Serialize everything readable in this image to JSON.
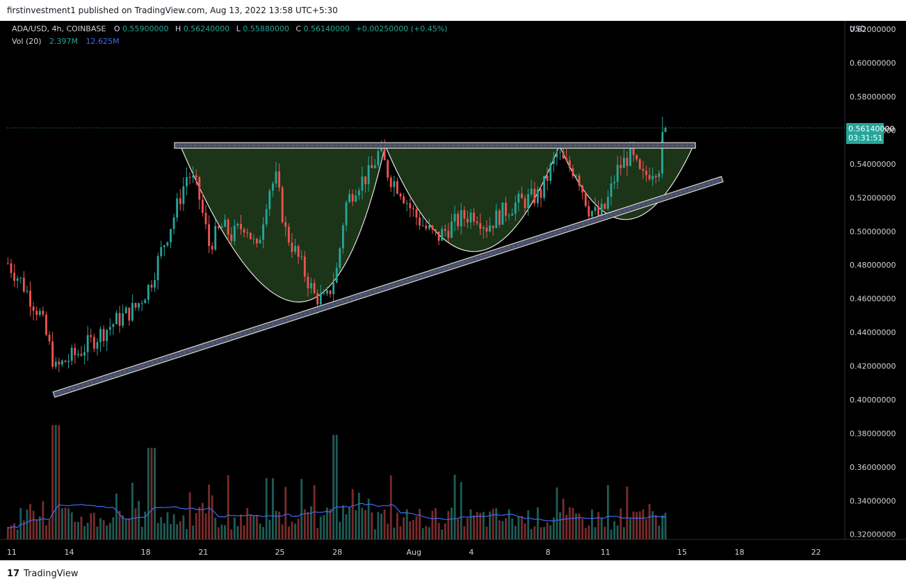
{
  "header": {
    "published": "firstinvestment1 published on TradingView.com, Aug 13, 2022 13:58 UTC+5:30"
  },
  "footer": {
    "brand": "TradingView",
    "logo_text": "17"
  },
  "legend": {
    "symbol": "ADA/USD, 4h, COINBASE",
    "o_label": "O",
    "o_value": "0.55900000",
    "h_label": "H",
    "h_value": "0.56240000",
    "l_label": "L",
    "l_value": "0.55880000",
    "c_label": "C",
    "c_value": "0.56140000",
    "change": "+0.00250000 (+0.45%)",
    "vol_label": "Vol (20)",
    "vol_value": "2.397M",
    "vol_ma": "12.625M"
  },
  "price_badge": {
    "price": "0.56140000",
    "countdown": "03:31:51"
  },
  "colors": {
    "up": "#26a69a",
    "down": "#ef5350",
    "vol_up": "#1f5c56",
    "vol_down": "#7a2b2b",
    "vol_ma": "#3d6cf5",
    "cup_fill": "#1f3a1a",
    "badge": "#26a69a",
    "background": "#000000"
  },
  "chart_data": {
    "type": "candlestick",
    "currency": "USD",
    "ylim": [
      0.317,
      0.625
    ],
    "y_ticks": [
      "0.62000000",
      "0.60000000",
      "0.58000000",
      "0.56000000",
      "0.54000000",
      "0.52000000",
      "0.50000000",
      "0.48000000",
      "0.46000000",
      "0.44000000",
      "0.42000000",
      "0.40000000",
      "0.38000000",
      "0.36000000",
      "0.34000000",
      "0.32000000"
    ],
    "x_ticks": [
      {
        "label": "11",
        "day": 11
      },
      {
        "label": "14",
        "day": 14
      },
      {
        "label": "18",
        "day": 18
      },
      {
        "label": "21",
        "day": 21
      },
      {
        "label": "25",
        "day": 25
      },
      {
        "label": "28",
        "day": 28
      },
      {
        "label": "Aug",
        "day": 32
      },
      {
        "label": "4",
        "day": 35
      },
      {
        "label": "8",
        "day": 39
      },
      {
        "label": "11",
        "day": 42
      },
      {
        "label": "15",
        "day": 46
      },
      {
        "label": "18",
        "day": 49
      },
      {
        "label": "22",
        "day": 53
      }
    ],
    "x_unit": "days from Jul 1 2022 (Aug 1 = 32)",
    "xlim": [
      10.75,
      54.5
    ],
    "price_path": [
      [
        10.8,
        0.481
      ],
      [
        11.5,
        0.47
      ],
      [
        12.5,
        0.45
      ],
      [
        13.3,
        0.418
      ],
      [
        13.8,
        0.423
      ],
      [
        14.5,
        0.428
      ],
      [
        15.5,
        0.438
      ],
      [
        16.5,
        0.447
      ],
      [
        17.5,
        0.455
      ],
      [
        18.2,
        0.468
      ],
      [
        18.8,
        0.488
      ],
      [
        19.5,
        0.51
      ],
      [
        20.2,
        0.535
      ],
      [
        20.7,
        0.525
      ],
      [
        21.3,
        0.492
      ],
      [
        22.0,
        0.503
      ],
      [
        22.5,
        0.497
      ],
      [
        23.2,
        0.505
      ],
      [
        23.8,
        0.488
      ],
      [
        24.4,
        0.525
      ],
      [
        24.8,
        0.531
      ],
      [
        25.3,
        0.5
      ],
      [
        26.0,
        0.483
      ],
      [
        26.8,
        0.462
      ],
      [
        27.4,
        0.458
      ],
      [
        28.0,
        0.478
      ],
      [
        28.4,
        0.515
      ],
      [
        29.0,
        0.528
      ],
      [
        29.7,
        0.534
      ],
      [
        30.2,
        0.548
      ],
      [
        30.7,
        0.533
      ],
      [
        31.3,
        0.525
      ],
      [
        31.9,
        0.512
      ],
      [
        32.6,
        0.502
      ],
      [
        33.2,
        0.496
      ],
      [
        33.8,
        0.502
      ],
      [
        34.5,
        0.508
      ],
      [
        35.2,
        0.511
      ],
      [
        35.8,
        0.503
      ],
      [
        36.5,
        0.51
      ],
      [
        37.2,
        0.516
      ],
      [
        38.0,
        0.519
      ],
      [
        38.6,
        0.522
      ],
      [
        39.1,
        0.536
      ],
      [
        39.5,
        0.547
      ],
      [
        39.9,
        0.539
      ],
      [
        40.5,
        0.536
      ],
      [
        41.1,
        0.514
      ],
      [
        41.6,
        0.509
      ],
      [
        42.0,
        0.514
      ],
      [
        42.6,
        0.536
      ],
      [
        43.3,
        0.546
      ],
      [
        43.9,
        0.531
      ],
      [
        44.4,
        0.537
      ],
      [
        44.8,
        0.539
      ],
      [
        45.0,
        0.552
      ],
      [
        45.15,
        0.561
      ]
    ],
    "candles": [],
    "volume_bars": [],
    "annotations": {
      "resistance": {
        "price": 0.551,
        "day_start": 19.5,
        "day_end": 46.7
      },
      "support_line": {
        "from": [
          13.2,
          0.403
        ],
        "to": [
          48.1,
          0.531
        ]
      },
      "cups": [
        {
          "start": [
            19.8,
            0.551
          ],
          "bottom": [
            26.8,
            0.458
          ],
          "end": [
            30.5,
            0.551
          ]
        },
        {
          "start": [
            30.5,
            0.551
          ],
          "bottom": [
            35.2,
            0.488
          ],
          "end": [
            39.6,
            0.551
          ]
        },
        {
          "start": [
            39.6,
            0.551
          ],
          "bottom": [
            43.0,
            0.507
          ],
          "end": [
            46.6,
            0.551
          ]
        }
      ],
      "current_price": 0.5614
    }
  }
}
